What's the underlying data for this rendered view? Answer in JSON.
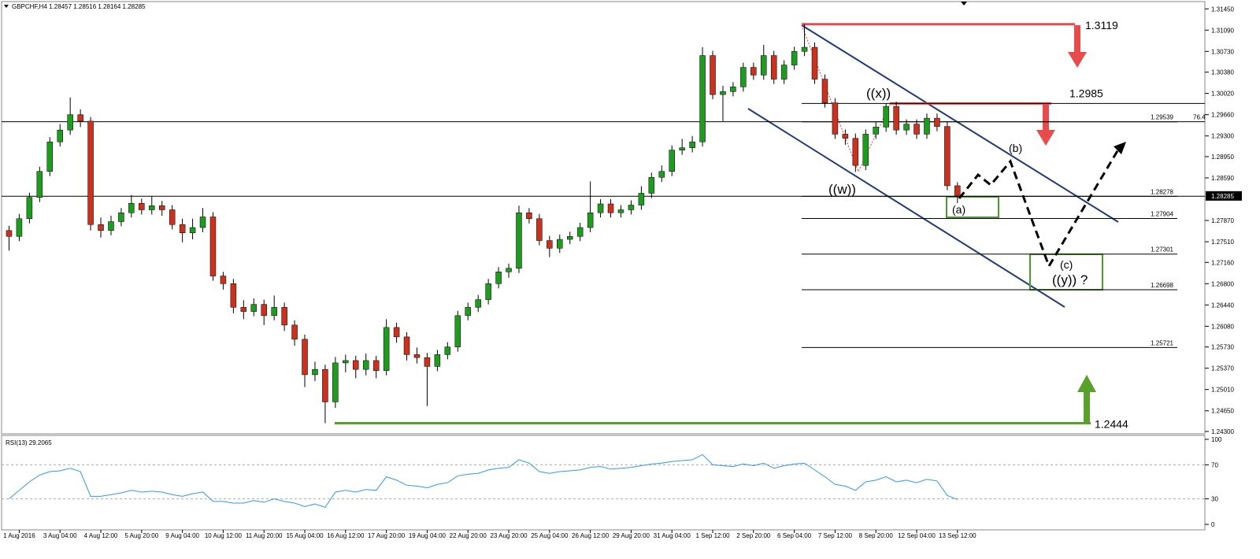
{
  "header": "GBPCHF,H4 1.28457 1.28516 1.28164 1.28285",
  "chart_data": [
    {
      "type": "candlestick",
      "categories": [
        null,
        "1 Aug 2016",
        null,
        null,
        null,
        "3 Aug 04:00",
        null,
        null,
        null,
        "4 Aug 12:00",
        null,
        null,
        null,
        "5 Aug 20:00",
        null,
        null,
        null,
        "9 Aug 04:00",
        null,
        null,
        null,
        "10 Aug 12:00",
        null,
        null,
        null,
        "11 Aug 20:00",
        null,
        null,
        null,
        "15 Aug 04:00",
        null,
        null,
        null,
        "16 Aug 12:00",
        null,
        null,
        null,
        "17 Aug 20:00",
        null,
        null,
        null,
        "19 Aug 04:00",
        null,
        null,
        null,
        "22 Aug 20:00",
        null,
        null,
        null,
        "23 Aug 20:00",
        null,
        null,
        null,
        "25 Aug 04:00",
        null,
        null,
        null,
        "26 Aug 12:00",
        null,
        null,
        null,
        "29 Aug 20:00",
        null,
        null,
        null,
        "31 Aug 04:00",
        null,
        null,
        null,
        "1 Sep 12:00",
        null,
        null,
        null,
        "2 Sep 20:00",
        null,
        null,
        null,
        "6 Sep 04:00",
        null,
        null,
        null,
        "7 Sep 12:00",
        null,
        null,
        null,
        "8 Sep 20:00",
        null,
        null,
        null,
        "12 Sep 04:00",
        null,
        null,
        null,
        "13 Sep 12:00"
      ],
      "open": [
        1.277,
        1.276,
        1.279,
        1.2826,
        1.287,
        1.292,
        1.294,
        1.2966,
        1.2955,
        1.278,
        1.277,
        1.2785,
        1.28,
        1.2816,
        1.2805,
        1.2812,
        1.2805,
        1.278,
        1.2766,
        1.2775,
        1.2793,
        1.2693,
        1.268,
        1.264,
        1.2633,
        1.2645,
        1.2626,
        1.264,
        1.261,
        1.2586,
        1.2526,
        1.2535,
        1.248,
        1.2546,
        1.255,
        1.2535,
        1.255,
        1.2533,
        1.2606,
        1.259,
        1.256,
        1.2555,
        1.254,
        1.256,
        1.2573,
        1.2626,
        1.264,
        1.2653,
        1.268,
        1.27,
        1.2706,
        1.28,
        1.279,
        1.2753,
        1.274,
        1.2755,
        1.276,
        1.2775,
        1.28,
        1.2815,
        1.28,
        1.2805,
        1.2813,
        1.2833,
        1.286,
        1.287,
        1.2906,
        1.291,
        1.292,
        1.3066,
        1.3,
        1.3005,
        1.3013,
        1.3046,
        1.3033,
        1.3066,
        1.3026,
        1.305,
        1.3073,
        1.308,
        1.3026,
        1.2986,
        1.2933,
        1.2926,
        1.288,
        1.2933,
        1.2945,
        1.298,
        1.294,
        1.295,
        1.2933,
        1.296,
        1.2946,
        1.28457
      ],
      "high": [
        1.2778,
        1.2798,
        1.2834,
        1.2878,
        1.2928,
        1.295,
        1.2995,
        1.2975,
        1.2962,
        1.2792,
        1.2795,
        1.2808,
        1.283,
        1.2824,
        1.2828,
        1.282,
        1.2813,
        1.279,
        1.279,
        1.2808,
        1.2801,
        1.27,
        1.2688,
        1.2652,
        1.2655,
        1.2653,
        1.266,
        1.2648,
        1.2618,
        1.2594,
        1.2548,
        1.2543,
        1.2556,
        1.256,
        1.2558,
        1.2562,
        1.2558,
        1.262,
        1.2614,
        1.2598,
        1.2572,
        1.2563,
        1.2568,
        1.2581,
        1.2634,
        1.2648,
        1.2661,
        1.2688,
        1.2708,
        1.2714,
        1.2812,
        1.2808,
        1.2798,
        1.2761,
        1.2763,
        1.2768,
        1.2783,
        1.2853,
        1.2823,
        1.2823,
        1.2813,
        1.2821,
        1.2845,
        1.2868,
        1.288,
        1.2914,
        1.2925,
        1.293,
        1.308,
        1.3074,
        1.3015,
        1.3021,
        1.3054,
        1.3054,
        1.3084,
        1.3074,
        1.3058,
        1.3081,
        1.3119,
        1.3088,
        1.3034,
        1.2994,
        1.2941,
        1.2934,
        1.2941,
        1.2953,
        1.2985,
        1.2988,
        1.2958,
        1.2958,
        1.2968,
        1.2968,
        1.2954,
        1.28516
      ],
      "low": [
        1.2736,
        1.2752,
        1.2782,
        1.2818,
        1.2862,
        1.2912,
        1.2932,
        1.2945,
        1.277,
        1.2758,
        1.2762,
        1.2777,
        1.2792,
        1.2797,
        1.2797,
        1.2795,
        1.2772,
        1.275,
        1.2755,
        1.2767,
        1.2685,
        1.267,
        1.263,
        1.262,
        1.2625,
        1.261,
        1.2618,
        1.26,
        1.2575,
        1.2505,
        1.2515,
        1.2444,
        1.247,
        1.253,
        1.252,
        1.2525,
        1.252,
        1.2525,
        1.258,
        1.255,
        1.2545,
        1.2473,
        1.2532,
        1.2552,
        1.2565,
        1.2618,
        1.2632,
        1.2645,
        1.2672,
        1.269,
        1.2698,
        1.2782,
        1.2745,
        1.2725,
        1.2732,
        1.2747,
        1.2752,
        1.2767,
        1.2792,
        1.2792,
        1.2792,
        1.2797,
        1.2805,
        1.2825,
        1.2852,
        1.2862,
        1.2898,
        1.2902,
        1.2912,
        1.2992,
        1.2955,
        1.2997,
        1.3005,
        1.3025,
        1.3025,
        1.3018,
        1.3018,
        1.3042,
        1.3065,
        1.3018,
        1.2978,
        1.2925,
        1.2915,
        1.2869,
        1.2872,
        1.2925,
        1.2937,
        1.2932,
        1.2932,
        1.2925,
        1.2925,
        1.2938,
        1.2838,
        1.28164
      ],
      "close": [
        1.276,
        1.279,
        1.2826,
        1.287,
        1.292,
        1.294,
        1.2966,
        1.2955,
        1.278,
        1.277,
        1.2785,
        1.28,
        1.2816,
        1.2805,
        1.2812,
        1.2805,
        1.278,
        1.2766,
        1.2775,
        1.2793,
        1.2693,
        1.268,
        1.264,
        1.2633,
        1.2645,
        1.2626,
        1.264,
        1.261,
        1.2586,
        1.2526,
        1.2535,
        1.248,
        1.2546,
        1.255,
        1.2535,
        1.255,
        1.2533,
        1.2606,
        1.259,
        1.256,
        1.2555,
        1.254,
        1.256,
        1.2573,
        1.2626,
        1.264,
        1.2653,
        1.268,
        1.27,
        1.2706,
        1.28,
        1.279,
        1.2753,
        1.274,
        1.2755,
        1.276,
        1.2775,
        1.28,
        1.2815,
        1.28,
        1.2805,
        1.2813,
        1.2833,
        1.286,
        1.287,
        1.2906,
        1.291,
        1.292,
        1.3066,
        1.3,
        1.3005,
        1.3013,
        1.3046,
        1.3033,
        1.3066,
        1.3026,
        1.305,
        1.3073,
        1.308,
        1.3026,
        1.2986,
        1.2933,
        1.2926,
        1.288,
        1.2933,
        1.2945,
        1.298,
        1.294,
        1.295,
        1.2933,
        1.296,
        1.2946,
        1.28457,
        1.28285
      ],
      "up_color": "#1f9c1f",
      "down_color": "#c8321e",
      "ylim": [
        1.2426,
        1.3156
      ],
      "yticks": [
        {
          "value": 1.3145,
          "label": "1.31450"
        },
        {
          "value": 1.3109,
          "label": "1.31090"
        },
        {
          "value": 1.3073,
          "label": "1.30730"
        },
        {
          "value": 1.3038,
          "label": "1.30380"
        },
        {
          "value": 1.3002,
          "label": "1.30020"
        },
        {
          "value": 1.2966,
          "label": "1.29660"
        },
        {
          "value": 1.293,
          "label": "1.29300"
        },
        {
          "value": 1.2895,
          "label": "1.28950"
        },
        {
          "value": 1.2859,
          "label": "1.28590"
        },
        {
          "value": 1.2787,
          "label": "1.27870"
        },
        {
          "value": 1.2751,
          "label": "1.27510"
        },
        {
          "value": 1.2716,
          "label": "1.27160"
        },
        {
          "value": 1.268,
          "label": "1.26800"
        },
        {
          "value": 1.2644,
          "label": "1.26440"
        },
        {
          "value": 1.2608,
          "label": "1.26080"
        },
        {
          "value": 1.2573,
          "label": "1.25730"
        },
        {
          "value": 1.2537,
          "label": "1.25370"
        },
        {
          "value": 1.2501,
          "label": "1.25010"
        },
        {
          "value": 1.2465,
          "label": "1.24650"
        },
        {
          "value": 1.243,
          "label": "1.24300"
        }
      ],
      "current_price": 1.28285,
      "hlines": [
        1.2954,
        1.2828
      ],
      "levels": [
        {
          "value": 1.3119,
          "color": "#e84b4b"
        },
        {
          "value": 1.2985,
          "color": "#e84b4b"
        },
        {
          "value": 1.2444,
          "color": "#5aa02c"
        }
      ],
      "fib_levels": [
        1.29539,
        1.28278,
        1.27904,
        1.27301,
        1.26698,
        1.25721
      ],
      "fib_pct_label": 76.4,
      "annotations": [
        "((x))",
        "((w))",
        "(a)",
        "(b)",
        "(c)",
        "((y)) ?"
      ]
    },
    {
      "type": "line",
      "title": "RSI(13) 29.2065",
      "color": "#3399ee",
      "values": [
        30,
        40,
        50,
        58,
        62,
        63,
        66,
        62,
        33,
        33,
        35,
        37,
        40,
        38,
        39,
        38,
        35,
        33,
        36,
        38,
        27,
        27,
        25,
        25,
        28,
        26,
        30,
        27,
        25,
        21,
        24,
        20,
        38,
        40,
        38,
        41,
        40,
        56,
        52,
        46,
        45,
        43,
        47,
        49,
        57,
        59,
        60,
        64,
        66,
        67,
        76,
        72,
        62,
        60,
        62,
        63,
        64,
        67,
        68,
        65,
        66,
        67,
        69,
        71,
        72,
        74,
        75,
        76,
        82,
        70,
        69,
        68,
        71,
        69,
        72,
        66,
        69,
        71,
        72,
        64,
        56,
        47,
        45,
        40,
        50,
        52,
        56,
        50,
        52,
        49,
        53,
        51,
        34,
        29.2065
      ],
      "ylim": [
        0,
        100
      ],
      "yticks": [
        0,
        30,
        70,
        100
      ],
      "levels": [
        30,
        70
      ]
    }
  ]
}
